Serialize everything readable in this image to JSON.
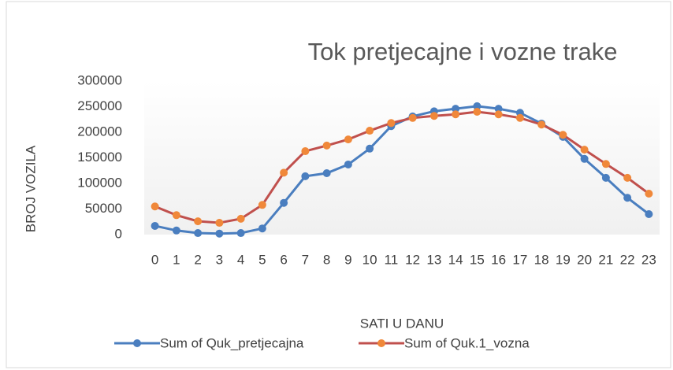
{
  "chart_data": {
    "type": "line",
    "title": "Tok pretjecajne i vozne trake",
    "y_label": "BROJ VOZILA",
    "x_label": "SATI U DANU",
    "categories": [
      "0",
      "1",
      "2",
      "3",
      "4",
      "5",
      "6",
      "7",
      "8",
      "9",
      "10",
      "11",
      "12",
      "13",
      "14",
      "15",
      "16",
      "17",
      "18",
      "19",
      "20",
      "21",
      "22",
      "23"
    ],
    "series": [
      {
        "name": "Sum of Quk_pretjecajna",
        "color": "#4a7ebf",
        "values": [
          17000,
          8000,
          3000,
          2000,
          3000,
          12000,
          62000,
          114000,
          120000,
          137000,
          168000,
          212000,
          231000,
          241000,
          246000,
          251000,
          246000,
          238000,
          217000,
          191000,
          148000,
          111000,
          72000,
          40000
        ]
      },
      {
        "name": "Sum of Quk.1_vozna",
        "color": "#c0504d",
        "marker_color": "#f0883a",
        "values": [
          55000,
          38000,
          26000,
          23000,
          31000,
          58000,
          121000,
          163000,
          174000,
          186000,
          203000,
          218000,
          228000,
          232000,
          235000,
          240000,
          235000,
          228000,
          215000,
          195000,
          166000,
          138000,
          111000,
          80000
        ]
      }
    ],
    "ylim": [
      0,
      300000
    ],
    "yticks": [
      0,
      50000,
      100000,
      150000,
      200000,
      250000,
      300000
    ],
    "grid": false,
    "legend": "bottom"
  }
}
